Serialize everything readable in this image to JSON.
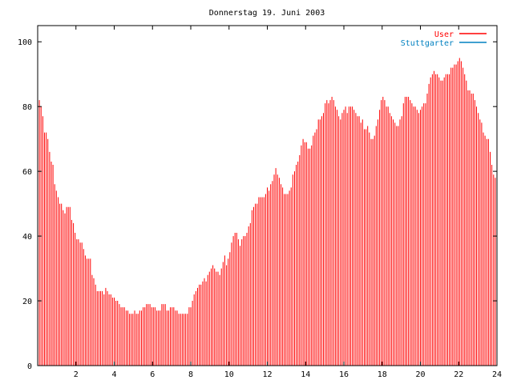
{
  "chart_data": {
    "type": "bar",
    "title": "Donnerstag 19. Juni 2003",
    "xlim": [
      0,
      24
    ],
    "ylim": [
      0,
      105
    ],
    "x_ticks": [
      2,
      4,
      6,
      8,
      10,
      12,
      14,
      16,
      18,
      20,
      22,
      24
    ],
    "y_ticks": [
      0,
      20,
      40,
      60,
      80,
      100
    ],
    "grid": false,
    "legend_position": "top-right",
    "series": [
      {
        "name": "User",
        "color": "#ff0000",
        "sample_interval_hours": 0.0833,
        "values": [
          82,
          82,
          80,
          77,
          72,
          72,
          70,
          66,
          63,
          62,
          56,
          54,
          52,
          50,
          50,
          48,
          47,
          49,
          49,
          49,
          45,
          44,
          41,
          39,
          39,
          38,
          38,
          36,
          34,
          33,
          33,
          33,
          28,
          27,
          25,
          23,
          23,
          23,
          23,
          22,
          24,
          23,
          22,
          22,
          21,
          21,
          20,
          20,
          19,
          18,
          18,
          18,
          17,
          17,
          16,
          16,
          16,
          17,
          16,
          16,
          17,
          17,
          18,
          18,
          19,
          19,
          19,
          18,
          18,
          18,
          17,
          17,
          17,
          19,
          19,
          19,
          17,
          17,
          18,
          18,
          18,
          17,
          17,
          16,
          16,
          16,
          16,
          16,
          16,
          18,
          18,
          20,
          22,
          23,
          24,
          25,
          25,
          26,
          27,
          26,
          28,
          29,
          30,
          31,
          30,
          29,
          29,
          28,
          30,
          32,
          34,
          31,
          33,
          35,
          38,
          40,
          41,
          41,
          39,
          37,
          39,
          40,
          40,
          41,
          43,
          44,
          48,
          49,
          50,
          50,
          52,
          52,
          52,
          52,
          53,
          55,
          54,
          56,
          57,
          59,
          61,
          59,
          58,
          56,
          55,
          53,
          53,
          53,
          54,
          55,
          59,
          60,
          62,
          63,
          65,
          68,
          70,
          69,
          69,
          67,
          67,
          68,
          71,
          72,
          73,
          76,
          76,
          77,
          78,
          81,
          82,
          81,
          82,
          83,
          82,
          80,
          79,
          77,
          76,
          78,
          79,
          80,
          78,
          80,
          80,
          80,
          79,
          78,
          77,
          77,
          75,
          76,
          73,
          73,
          74,
          72,
          70,
          70,
          71,
          74,
          76,
          79,
          82,
          83,
          82,
          80,
          80,
          78,
          77,
          76,
          75,
          74,
          74,
          76,
          77,
          81,
          83,
          83,
          83,
          82,
          81,
          80,
          80,
          79,
          78,
          79,
          80,
          81,
          81,
          84,
          87,
          89,
          90,
          91,
          90,
          90,
          89,
          88,
          88,
          89,
          90,
          90,
          90,
          92,
          92,
          93,
          93,
          94,
          95,
          94,
          92,
          90,
          88,
          85,
          85,
          84,
          84,
          82,
          80,
          78,
          76,
          75,
          72,
          71,
          70,
          70,
          66,
          62,
          59,
          58,
          58
        ]
      },
      {
        "name": "Stuttgarter",
        "color": "#0080c0",
        "values": []
      }
    ]
  }
}
